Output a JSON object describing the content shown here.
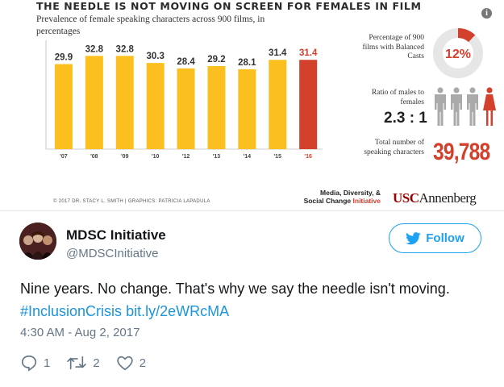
{
  "infographic": {
    "title": "THE NEEDLE IS NOT MOVING ON SCREEN FOR FEMALES IN FILM",
    "subtitle": "Prevalence of female speaking characters across 900 films, in percentages",
    "credit": "© 2017 DR. STACY L. SMITH | GRAPHICS: PATRICIA LAPADULA",
    "info_icon_label": "i",
    "stats": {
      "balanced_label": "Percentage of 900 films with Balanced Casts",
      "balanced_value": "12%",
      "balanced_fraction": 0.12,
      "ratio_label": "Ratio of males to females",
      "ratio_value": "2.3 : 1",
      "total_label": "Total number of speaking characters",
      "total_value": "39,788"
    },
    "org_line1": "Media, Diversity, &",
    "org_line2_a": "Social Change",
    "org_line2_b": "Initiative",
    "logo_usc": "USC",
    "logo_annenberg": "Annenberg",
    "colors": {
      "bar": "#fbbf1f",
      "highlight": "#d3402c",
      "donut_track": "#e6e6e6",
      "figure": "#aaaaaa"
    }
  },
  "chart_data": {
    "type": "bar",
    "title": "THE NEEDLE IS NOT MOVING ON SCREEN FOR FEMALES IN FILM",
    "subtitle": "Prevalence of female speaking characters across 900 films, in percentages",
    "categories": [
      "'07",
      "'08",
      "'09",
      "'10",
      "'12",
      "'13",
      "'14",
      "'15",
      "'16"
    ],
    "values": [
      29.9,
      32.8,
      32.8,
      30.3,
      28.4,
      29.2,
      28.1,
      31.4,
      31.4
    ],
    "value_labels": [
      "29.9",
      "32.8",
      "32.8",
      "30.3",
      "28.4",
      "29.2",
      "28.1",
      "31.4",
      "31.4"
    ],
    "highlight_index": 8,
    "ylim": [
      0,
      36
    ],
    "grid": false,
    "legend": "none"
  },
  "tweet": {
    "display_name": "MDSC Initiative",
    "handle": "@MDSCInitiative",
    "follow_label": "Follow",
    "text_plain": "Nine years. No change. That's why we say the needle isn't moving.",
    "hashtag": "#InclusionCrisis",
    "link": "bit.ly/2eWRcMA",
    "timestamp": "4:30 AM - Aug 2, 2017",
    "reply_count": "1",
    "retweet_count": "2",
    "like_count": "2"
  }
}
